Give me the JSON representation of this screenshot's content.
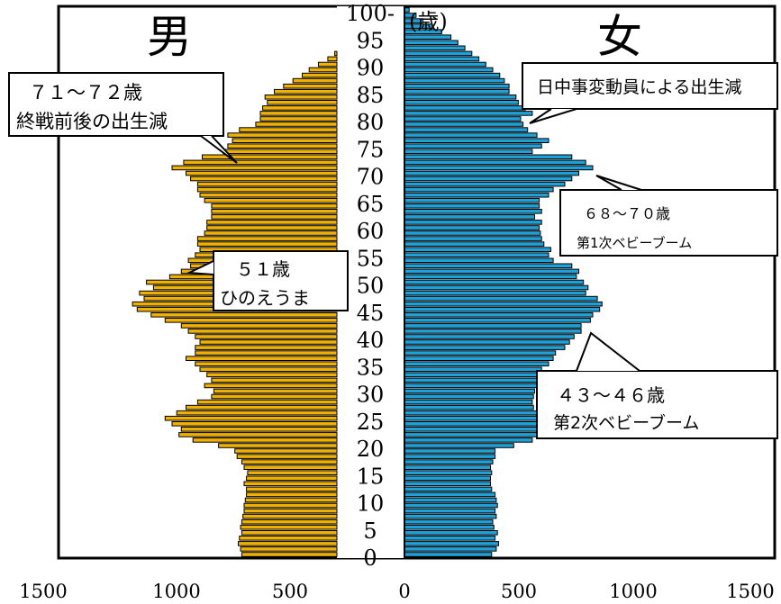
{
  "chart_data": {
    "type": "bar",
    "title": "",
    "left_label": "男",
    "right_label": "女",
    "age_unit_label": "(歳)",
    "age_tick_labels": [
      "0",
      "5",
      "10",
      "15",
      "20",
      "25",
      "30",
      "35",
      "40",
      "45",
      "50",
      "55",
      "60",
      "65",
      "70",
      "75",
      "80",
      "85",
      "90",
      "95",
      "100-"
    ],
    "x_tick_labels": [
      "1500",
      "1000",
      "500",
      "0",
      "500",
      "1000",
      "1500"
    ],
    "xlim": [
      -1500,
      1500
    ],
    "ylim": [
      0,
      100
    ],
    "colors": {
      "male": "#f0b000",
      "female": "#1ea0d8",
      "outline": "#000000"
    },
    "series": [
      {
        "name": "男",
        "ages": [
          0,
          1,
          2,
          3,
          4,
          5,
          6,
          7,
          8,
          9,
          10,
          11,
          12,
          13,
          14,
          15,
          16,
          17,
          18,
          19,
          20,
          21,
          22,
          23,
          24,
          25,
          26,
          27,
          28,
          29,
          30,
          31,
          32,
          33,
          34,
          35,
          36,
          37,
          38,
          39,
          40,
          41,
          42,
          43,
          44,
          45,
          46,
          47,
          48,
          49,
          50,
          51,
          52,
          53,
          54,
          55,
          56,
          57,
          58,
          59,
          60,
          61,
          62,
          63,
          64,
          65,
          66,
          67,
          68,
          69,
          70,
          71,
          72,
          73,
          74,
          75,
          76,
          77,
          78,
          79,
          80,
          81,
          82,
          83,
          84,
          85,
          86,
          87,
          88,
          89,
          90,
          91,
          92,
          93,
          94,
          95,
          96,
          97,
          98,
          99,
          100
        ],
        "values": [
          700,
          705,
          715,
          710,
          700,
          705,
          700,
          695,
          690,
          690,
          685,
          680,
          680,
          690,
          680,
          675,
          690,
          700,
          720,
          730,
          800,
          910,
          970,
          960,
          1000,
          1030,
          980,
          940,
          890,
          830,
          820,
          860,
          830,
          850,
          880,
          900,
          940,
          900,
          900,
          880,
          900,
          930,
          960,
          1030,
          1090,
          1150,
          1170,
          1120,
          1140,
          1080,
          1110,
          1010,
          960,
          920,
          930,
          900,
          880,
          890,
          890,
          860,
          850,
          850,
          830,
          830,
          830,
          860,
          880,
          890,
          890,
          920,
          940,
          1000,
          950,
          870,
          780,
          760,
          740,
          760,
          710,
          640,
          620,
          620,
          610,
          590,
          600,
          560,
          520,
          480,
          440,
          410,
          370,
          330,
          300,
          270,
          240,
          210,
          170,
          120,
          80,
          50,
          20
        ]
      },
      {
        "name": "女",
        "ages": [
          0,
          1,
          2,
          3,
          4,
          5,
          6,
          7,
          8,
          9,
          10,
          11,
          12,
          13,
          14,
          15,
          16,
          17,
          18,
          19,
          20,
          21,
          22,
          23,
          24,
          25,
          26,
          27,
          28,
          29,
          30,
          31,
          32,
          33,
          34,
          35,
          36,
          37,
          38,
          39,
          40,
          41,
          42,
          43,
          44,
          45,
          46,
          47,
          48,
          49,
          50,
          51,
          52,
          53,
          54,
          55,
          56,
          57,
          58,
          59,
          60,
          61,
          62,
          63,
          64,
          65,
          66,
          67,
          68,
          69,
          70,
          71,
          72,
          73,
          74,
          75,
          76,
          77,
          78,
          79,
          80,
          81,
          82,
          83,
          84,
          85,
          86,
          87,
          88,
          89,
          90,
          91,
          92,
          93,
          94,
          95,
          96,
          97,
          98,
          99,
          100
        ],
        "values": [
          375,
          395,
          405,
          390,
          400,
          385,
          380,
          395,
          390,
          400,
          395,
          390,
          375,
          370,
          370,
          375,
          370,
          380,
          390,
          390,
          470,
          550,
          620,
          600,
          590,
          600,
          570,
          555,
          550,
          555,
          560,
          600,
          590,
          585,
          590,
          620,
          640,
          650,
          690,
          710,
          730,
          760,
          760,
          800,
          810,
          840,
          850,
          830,
          780,
          790,
          770,
          740,
          750,
          720,
          640,
          620,
          630,
          600,
          590,
          585,
          580,
          590,
          560,
          590,
          580,
          580,
          620,
          640,
          690,
          720,
          750,
          810,
          780,
          720,
          550,
          590,
          620,
          570,
          530,
          510,
          500,
          550,
          520,
          490,
          480,
          450,
          450,
          430,
          410,
          380,
          350,
          320,
          290,
          260,
          230,
          200,
          160,
          120,
          80,
          50,
          20
        ]
      }
    ],
    "annotations": [
      {
        "line1": "７１～７２歳",
        "line2": "終戦前後の出生減"
      },
      {
        "line1": "日中事変動員による出生減"
      },
      {
        "line1": "６８～７０歳",
        "line2": "第1次ベビーブーム"
      },
      {
        "line1": "５１歳",
        "line2": "ひのえうま"
      },
      {
        "line1": "４３～４６歳",
        "line2": "第2次ベビーブーム"
      }
    ]
  }
}
